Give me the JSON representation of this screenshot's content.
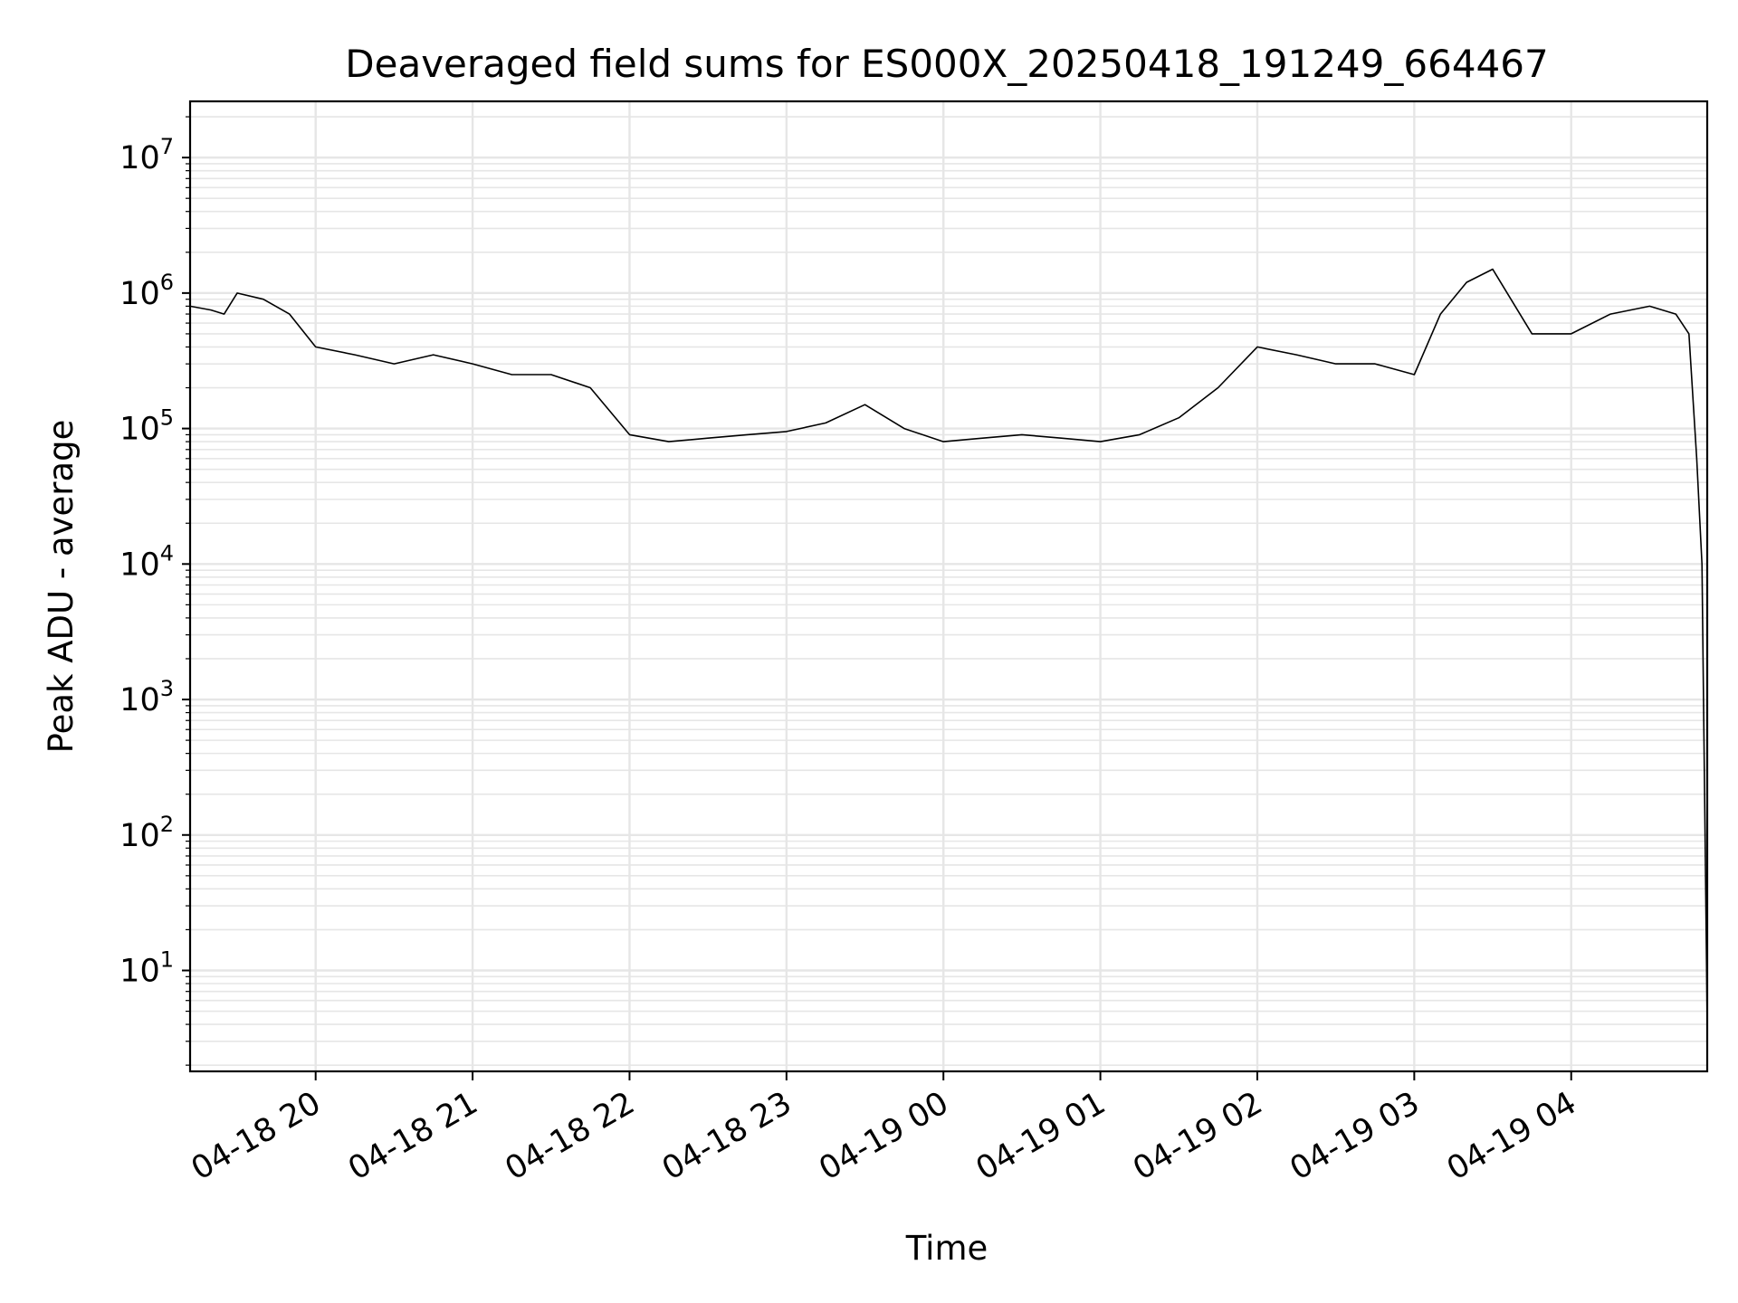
{
  "chart_data": {
    "type": "line",
    "title": "Deaveraged field sums for ES000X_20250418_191249_664467",
    "xlabel": "Time",
    "ylabel": "Peak ADU - average",
    "yscale": "log",
    "xlim": [
      "2025-04-18T19:12",
      "2025-04-19T04:52"
    ],
    "ylim": [
      1.8,
      26000000.0
    ],
    "grid": true,
    "line_color": "#000000",
    "grid_color": "#e6e6e6",
    "x_ticks": [
      {
        "t": "2025-04-18T20:00",
        "label": "04-18 20"
      },
      {
        "t": "2025-04-18T21:00",
        "label": "04-18 21"
      },
      {
        "t": "2025-04-18T22:00",
        "label": "04-18 22"
      },
      {
        "t": "2025-04-18T23:00",
        "label": "04-18 23"
      },
      {
        "t": "2025-04-19T00:00",
        "label": "04-19 00"
      },
      {
        "t": "2025-04-19T01:00",
        "label": "04-19 01"
      },
      {
        "t": "2025-04-19T02:00",
        "label": "04-19 02"
      },
      {
        "t": "2025-04-19T03:00",
        "label": "04-19 03"
      },
      {
        "t": "2025-04-19T04:00",
        "label": "04-19 04"
      }
    ],
    "y_ticks": [
      {
        "value": 10,
        "base": "10",
        "exp": "1"
      },
      {
        "value": 100,
        "base": "10",
        "exp": "2"
      },
      {
        "value": 1000,
        "base": "10",
        "exp": "3"
      },
      {
        "value": 10000,
        "base": "10",
        "exp": "4"
      },
      {
        "value": 100000,
        "base": "10",
        "exp": "5"
      },
      {
        "value": 1000000,
        "base": "10",
        "exp": "6"
      },
      {
        "value": 10000000,
        "base": "10",
        "exp": "7"
      }
    ],
    "series": [
      {
        "x": [
          "2025-04-18T19:12",
          "2025-04-18T19:20",
          "2025-04-18T19:25",
          "2025-04-18T19:30",
          "2025-04-18T19:40",
          "2025-04-18T19:50",
          "2025-04-18T20:00",
          "2025-04-18T20:15",
          "2025-04-18T20:30",
          "2025-04-18T20:45",
          "2025-04-18T21:00",
          "2025-04-18T21:15",
          "2025-04-18T21:30",
          "2025-04-18T21:45",
          "2025-04-18T22:00",
          "2025-04-18T22:15",
          "2025-04-18T22:30",
          "2025-04-18T22:45",
          "2025-04-18T23:00",
          "2025-04-18T23:15",
          "2025-04-18T23:30",
          "2025-04-18T23:45",
          "2025-04-19T00:00",
          "2025-04-19T00:15",
          "2025-04-19T00:30",
          "2025-04-19T00:45",
          "2025-04-19T01:00",
          "2025-04-19T01:15",
          "2025-04-19T01:30",
          "2025-04-19T01:45",
          "2025-04-19T02:00",
          "2025-04-19T02:15",
          "2025-04-19T02:30",
          "2025-04-19T02:45",
          "2025-04-19T03:00",
          "2025-04-19T03:10",
          "2025-04-19T03:20",
          "2025-04-19T03:30",
          "2025-04-19T03:45",
          "2025-04-19T04:00",
          "2025-04-19T04:15",
          "2025-04-19T04:30",
          "2025-04-19T04:40",
          "2025-04-19T04:45",
          "2025-04-19T04:48",
          "2025-04-19T04:50",
          "2025-04-19T04:51",
          "2025-04-19T04:52"
        ],
        "y": [
          800000,
          750000,
          700000,
          1000000,
          900000,
          700000,
          400000,
          350000,
          300000,
          350000,
          300000,
          250000,
          250000,
          200000,
          90000,
          80000,
          85000,
          90000,
          95000,
          110000,
          150000,
          100000,
          80000,
          85000,
          90000,
          85000,
          80000,
          90000,
          120000,
          200000,
          400000,
          350000,
          300000,
          300000,
          250000,
          700000,
          1200000,
          1500000,
          500000,
          500000,
          700000,
          800000,
          700000,
          500000,
          60000,
          10000,
          200,
          4
        ]
      }
    ]
  }
}
